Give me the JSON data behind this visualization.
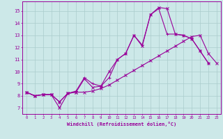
{
  "xlabel": "Windchill (Refroidissement éolien,°C)",
  "x": [
    0,
    1,
    2,
    3,
    4,
    5,
    6,
    7,
    8,
    9,
    10,
    11,
    12,
    13,
    14,
    15,
    16,
    17,
    18,
    19,
    20,
    21,
    22,
    23
  ],
  "line1": [
    8.3,
    8.0,
    8.1,
    8.1,
    7.0,
    8.2,
    8.3,
    9.4,
    8.7,
    8.8,
    10.0,
    11.0,
    11.5,
    13.0,
    12.1,
    14.7,
    15.3,
    15.2,
    13.1,
    13.0,
    12.7,
    11.7,
    10.7,
    null
  ],
  "line2": [
    8.3,
    8.0,
    8.1,
    8.1,
    7.5,
    8.2,
    8.4,
    9.5,
    9.0,
    8.8,
    9.5,
    11.0,
    11.5,
    13.0,
    12.2,
    14.7,
    15.2,
    13.1,
    13.1,
    13.0,
    12.7,
    11.7,
    10.7,
    null
  ],
  "line3": [
    8.3,
    8.0,
    8.1,
    8.1,
    7.5,
    8.2,
    8.3,
    8.3,
    8.4,
    8.6,
    8.9,
    9.3,
    9.7,
    10.1,
    10.5,
    10.9,
    11.3,
    11.7,
    12.1,
    12.5,
    12.9,
    13.0,
    11.5,
    10.7
  ],
  "bg_color": "#cce8e8",
  "line_color": "#990099",
  "grid_color": "#aacccc",
  "ylim": [
    6.5,
    15.8
  ],
  "yticks": [
    7,
    8,
    9,
    10,
    11,
    12,
    13,
    14,
    15
  ],
  "xticks": [
    0,
    1,
    2,
    3,
    4,
    5,
    6,
    7,
    8,
    9,
    10,
    11,
    12,
    13,
    14,
    15,
    16,
    17,
    18,
    19,
    20,
    21,
    22,
    23
  ]
}
